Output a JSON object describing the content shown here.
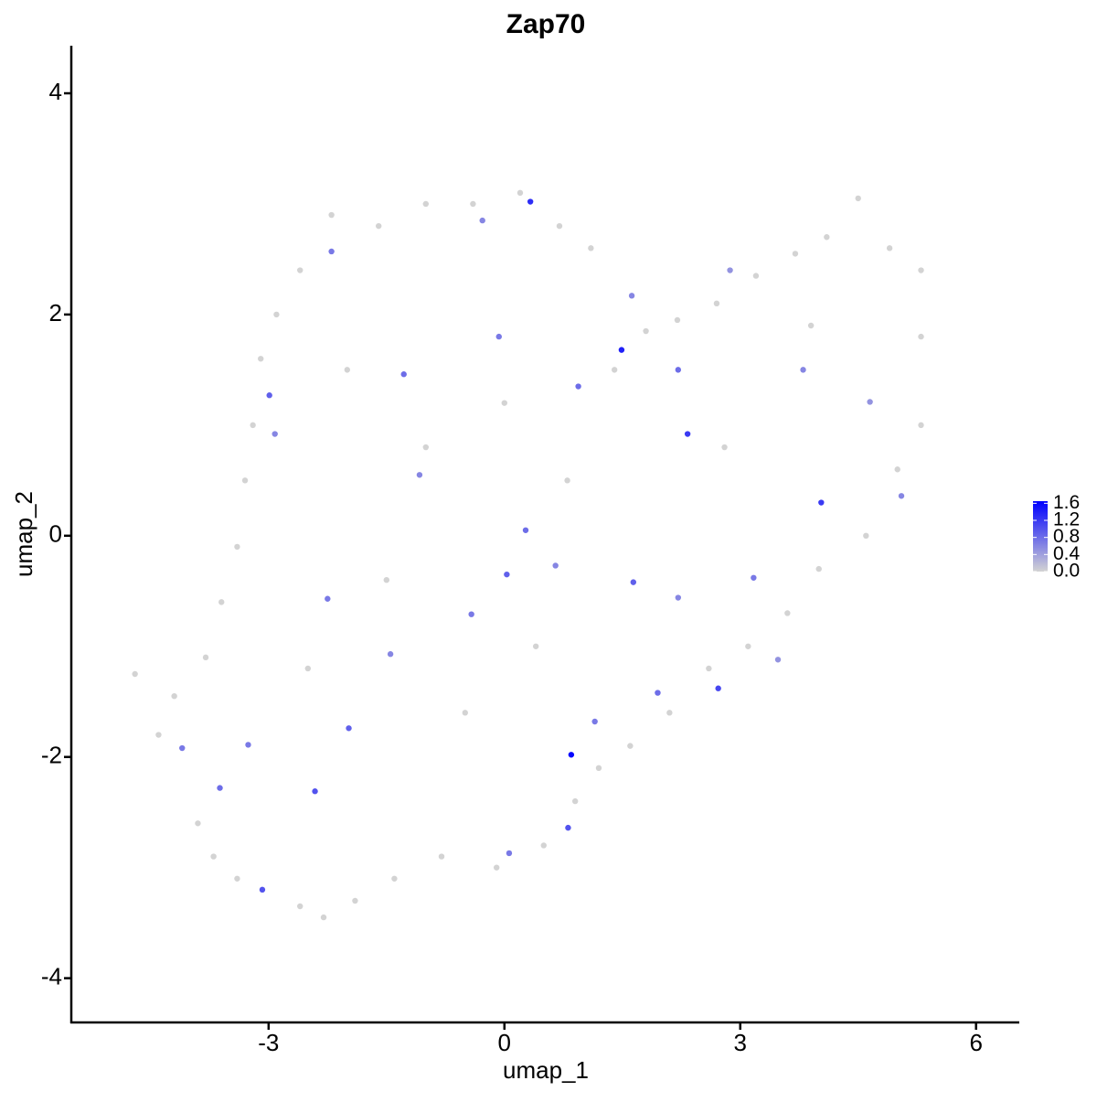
{
  "chart_data": {
    "type": "scatter",
    "title": "Zap70",
    "x_label": "umap_1",
    "y_label": "umap_2",
    "xlim": [
      -5.51,
      6.55
    ],
    "ylim": [
      -4.4,
      4.43
    ],
    "xticks": [
      -3,
      0,
      3,
      6
    ],
    "yticks": [
      -4,
      -2,
      0,
      2,
      4
    ],
    "low_color": "#d3d3d3",
    "high_color": "#0000ff",
    "color_limits": [
      0,
      1.65
    ],
    "color_ticks": [
      {
        "value": 0,
        "label": "0.0"
      },
      0.4,
      0.8,
      1.2,
      1.6
    ],
    "x": [
      1.49,
      0.33,
      0.85,
      2.33,
      4.03,
      2.72,
      -3.08,
      -2.41,
      0.81,
      -1.98,
      -2.99,
      1.64,
      1.95,
      0.03,
      2.21,
      -2.2,
      -1.28,
      -0.07,
      0.94,
      -4.1,
      -3.62,
      -2.25,
      -1.08,
      0.27,
      1.15,
      3.17,
      3.8,
      4.65,
      5.05,
      -2.92,
      -0.42,
      0.65,
      -0.28,
      1.62,
      2.87,
      -1.45,
      -3.26,
      0.06,
      3.48,
      2.21,
      -4.7,
      -4.4,
      -4.2,
      -3.9,
      -3.7,
      -3.4,
      -2.6,
      -2.3,
      -1.9,
      -1.4,
      -0.8,
      -0.1,
      0.5,
      0.9,
      1.2,
      1.6,
      2.1,
      2.6,
      3.1,
      3.6,
      4.0,
      4.6,
      5.0,
      5.3,
      5.3,
      5.3,
      4.9,
      4.5,
      4.1,
      3.7,
      3.2,
      2.7,
      2.2,
      1.8,
      1.4,
      1.1,
      0.7,
      0.2,
      -0.4,
      -1.0,
      -1.6,
      -2.2,
      -2.6,
      -2.9,
      -3.1,
      -3.2,
      -3.3,
      -3.4,
      -3.6,
      -3.8,
      -2.0,
      -1.0,
      0,
      0.8,
      -1.5,
      -0.5,
      0.4,
      2.8,
      3.9,
      -2.5
    ],
    "y": [
      1.68,
      3.02,
      -1.98,
      0.92,
      0.3,
      -1.38,
      -3.2,
      -2.31,
      -2.64,
      -1.74,
      1.27,
      -0.42,
      -1.42,
      -0.35,
      1.5,
      2.57,
      1.46,
      1.8,
      1.35,
      -1.92,
      -2.28,
      -0.57,
      0.55,
      0.05,
      -1.68,
      -0.38,
      1.5,
      1.21,
      0.36,
      0.92,
      -0.71,
      -0.27,
      2.85,
      2.17,
      2.4,
      -1.07,
      -1.89,
      -2.87,
      -1.12,
      -0.56,
      -1.25,
      -1.8,
      -1.45,
      -2.6,
      -2.9,
      -3.1,
      -3.35,
      -3.45,
      -3.3,
      -3.1,
      -2.9,
      -3.0,
      -2.8,
      -2.4,
      -2.1,
      -1.9,
      -1.6,
      -1.2,
      -1.0,
      -0.7,
      -0.3,
      0,
      0.6,
      1.0,
      1.8,
      2.4,
      2.6,
      3.05,
      2.7,
      2.55,
      2.35,
      2.1,
      1.95,
      1.85,
      1.5,
      2.6,
      2.8,
      3.1,
      3.0,
      3.0,
      2.8,
      2.9,
      2.4,
      2.0,
      1.6,
      1.0,
      0.5,
      -0.1,
      -0.6,
      -1.1,
      1.5,
      0.8,
      1.2,
      0.5,
      -0.4,
      -1.6,
      -1.0,
      0.8,
      1.9,
      -1.2
    ],
    "values": [
      1.4,
      1.3,
      1.6,
      1.2,
      1.2,
      1.1,
      1.0,
      1.0,
      1.0,
      0.9,
      0.9,
      0.9,
      0.8,
      0.9,
      0.8,
      0.7,
      0.8,
      0.7,
      0.8,
      0.7,
      0.8,
      0.7,
      0.6,
      0.8,
      0.7,
      0.7,
      0.6,
      0.5,
      0.6,
      0.6,
      0.7,
      0.6,
      0.6,
      0.6,
      0.5,
      0.6,
      0.7,
      0.7,
      0.5,
      0.6,
      0,
      0,
      0,
      0,
      0,
      0,
      0,
      0,
      0,
      0,
      0,
      0,
      0,
      0,
      0,
      0,
      0,
      0,
      0,
      0,
      0,
      0,
      0,
      0,
      0,
      0,
      0,
      0,
      0,
      0,
      0,
      0,
      0,
      0,
      0,
      0,
      0,
      0,
      0,
      0,
      0,
      0,
      0,
      0,
      0,
      0,
      0,
      0,
      0,
      0,
      0,
      0,
      0,
      0,
      0,
      0,
      0,
      0,
      0,
      0
    ]
  }
}
